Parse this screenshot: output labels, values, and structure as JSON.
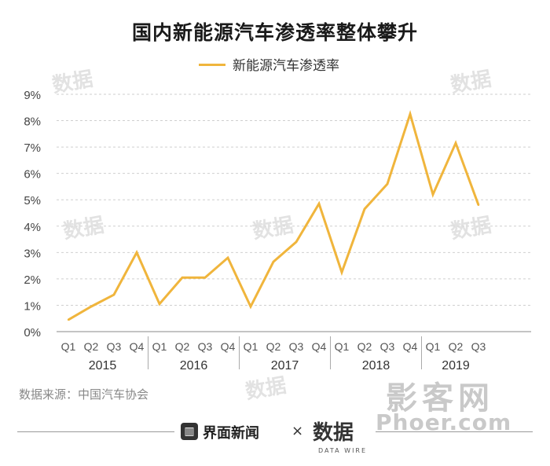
{
  "title": "国内新能源汽车渗透率整体攀升",
  "source": "数据来源：中国汽车协会",
  "brand": {
    "jiemian": "界面新闻",
    "separator": "×",
    "shuju": "数据",
    "shuju_sub": "DATA WIRE",
    "icon": "jiemian-logo-icon"
  },
  "watermarks": {
    "shuju": "数据",
    "site_main": "影客网",
    "site_url": "Phoer.com"
  },
  "colors": {
    "line": "#f0b53c",
    "grid": "#cfcfcf",
    "axis_text": "#444444"
  },
  "chart_data": {
    "type": "line",
    "title": "国内新能源汽车渗透率整体攀升",
    "legend": {
      "position": "top-center"
    },
    "grid": true,
    "x": [
      "Q1",
      "Q2",
      "Q3",
      "Q4",
      "Q1",
      "Q2",
      "Q3",
      "Q4",
      "Q1",
      "Q2",
      "Q3",
      "Q4",
      "Q1",
      "Q2",
      "Q3",
      "Q4",
      "Q1",
      "Q2",
      "Q3"
    ],
    "groups": [
      {
        "label": "2015",
        "count": 4
      },
      {
        "label": "2016",
        "count": 4
      },
      {
        "label": "2017",
        "count": 4
      },
      {
        "label": "2018",
        "count": 4
      },
      {
        "label": "2019",
        "count": 3
      }
    ],
    "series": [
      {
        "name": "新能源汽车渗透率",
        "values": [
          0.45,
          0.95,
          1.4,
          3.0,
          1.05,
          2.05,
          2.05,
          2.8,
          0.95,
          2.65,
          3.4,
          4.85,
          2.25,
          4.65,
          5.6,
          8.25,
          5.2,
          7.15,
          4.8
        ]
      }
    ],
    "ylim": [
      0,
      9
    ],
    "yticks": [
      "0%",
      "1%",
      "2%",
      "3%",
      "4%",
      "5%",
      "6%",
      "7%",
      "8%",
      "9%"
    ]
  }
}
